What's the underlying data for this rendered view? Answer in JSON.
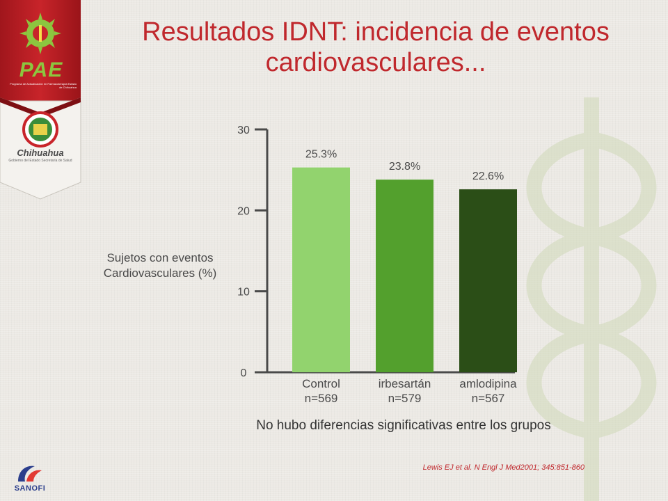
{
  "title": "Resultados IDNT: incidencia de eventos cardiovasculares...",
  "logos": {
    "pae": "PAE",
    "pae_sub": "Programa de Actualización en Farmacoterapia Estado de Chihuahua",
    "chihuahua": "Chihuahua",
    "chihuahua_sub": "Gobierno del Estado Secretaría de Salud",
    "sanofi": "SANOFI"
  },
  "chart_data": {
    "type": "bar",
    "categories": [
      "Control\nn=569",
      "irbesartán\nn=579",
      "amlodipina\nn=567"
    ],
    "values": [
      25.3,
      23.8,
      22.6
    ],
    "value_labels": [
      "25.3%",
      "23.8%",
      "22.6%"
    ],
    "colors": [
      "#92d36e",
      "#53a02d",
      "#2b4e17"
    ],
    "ylabel": "Sujetos con eventos Cardiovasculares (%)",
    "ylim": [
      0,
      30
    ],
    "yticks": [
      0,
      10,
      20,
      30
    ],
    "grid": false
  },
  "note": "No hubo diferencias significativas entre los grupos",
  "citation": "Lewis EJ et al. N Engl J Med2001; 345:851-860"
}
